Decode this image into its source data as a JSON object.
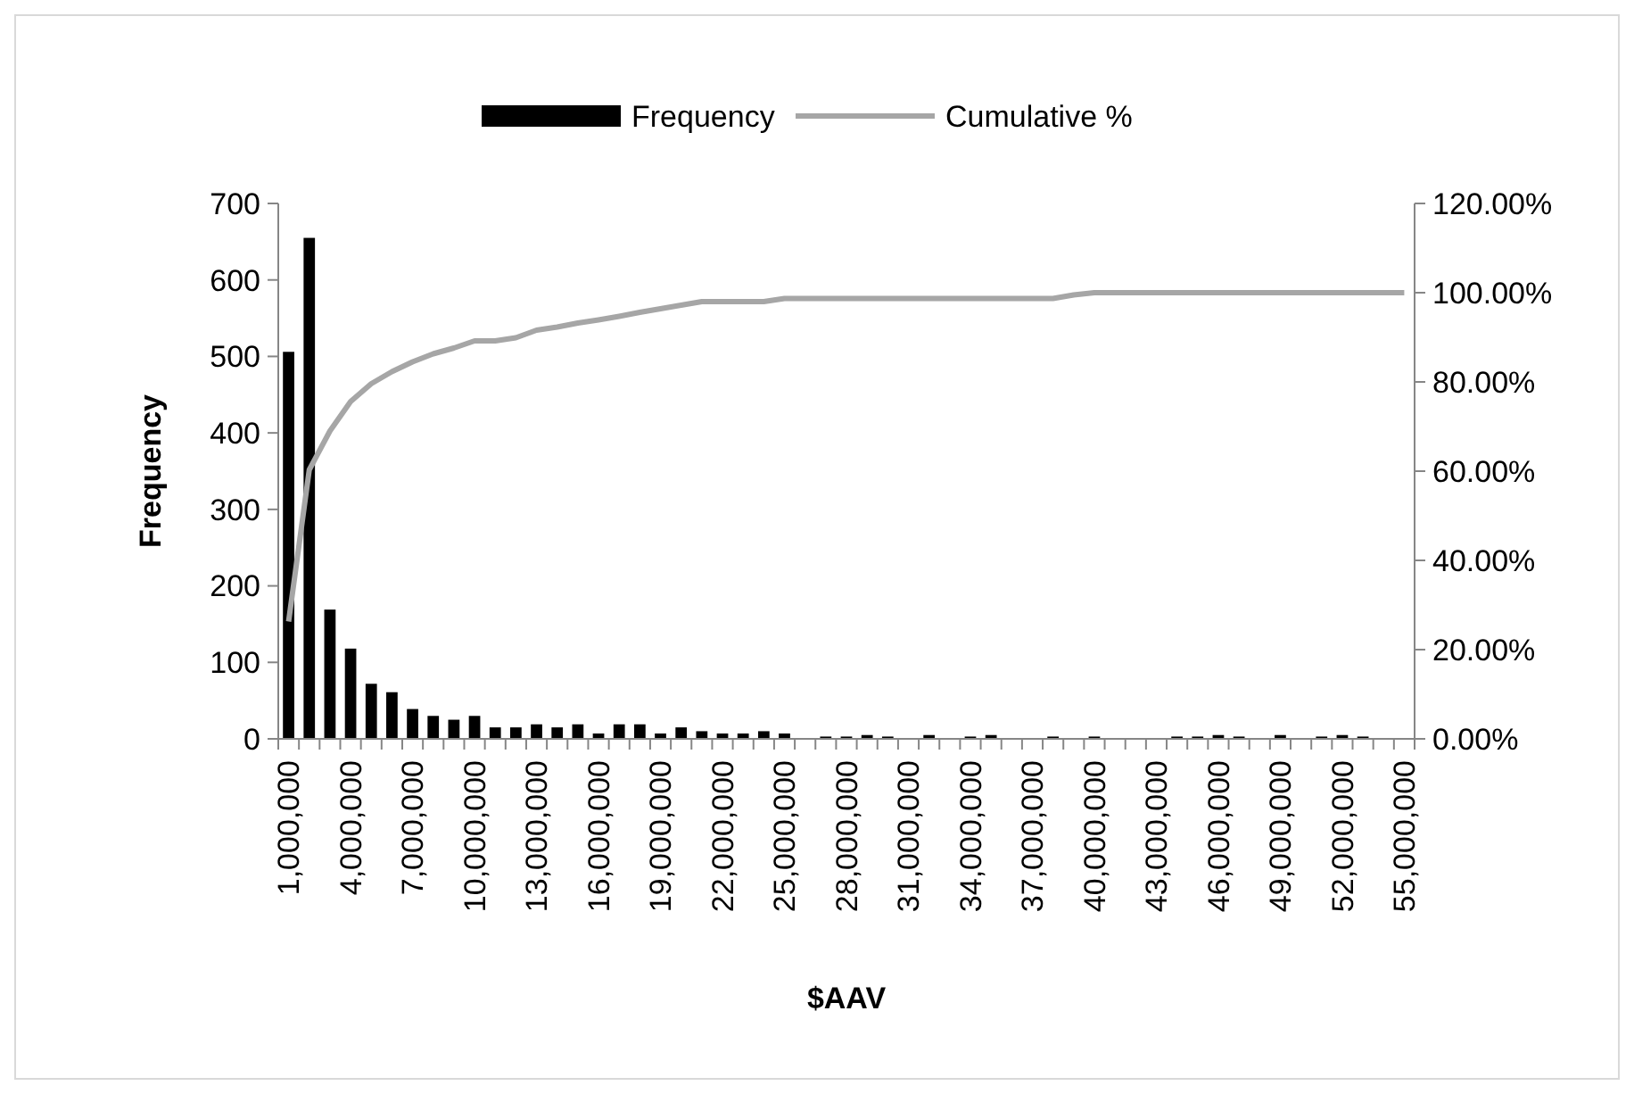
{
  "chart_data": {
    "type": "bar",
    "xlabel": "$AAV",
    "ylabel": "Frequency",
    "categories": [
      "1,000,000",
      null,
      null,
      "4,000,000",
      null,
      null,
      "7,000,000",
      null,
      null,
      "10,000,000",
      null,
      null,
      "13,000,000",
      null,
      null,
      "16,000,000",
      null,
      null,
      "19,000,000",
      null,
      null,
      "22,000,000",
      null,
      null,
      "25,000,000",
      null,
      null,
      "28,000,000",
      null,
      null,
      "31,000,000",
      null,
      null,
      "34,000,000",
      null,
      null,
      "37,000,000",
      null,
      null,
      "40,000,000",
      null,
      null,
      "43,000,000",
      null,
      null,
      "46,000,000",
      null,
      null,
      "49,000,000",
      null,
      null,
      "52,000,000",
      null,
      null,
      "55,000,000"
    ],
    "series": [
      {
        "name": "Frequency",
        "color": "#000000",
        "values": [
          506,
          655,
          169,
          118,
          72,
          61,
          39,
          30,
          25,
          30,
          15,
          15,
          19,
          15,
          19,
          7,
          19,
          19,
          7,
          15,
          10,
          7,
          7,
          10,
          7,
          0,
          3,
          3,
          5,
          3,
          0,
          5,
          0,
          3,
          5,
          0,
          0,
          3,
          0,
          3,
          0,
          0,
          0,
          3,
          3,
          5,
          3,
          0,
          5,
          0,
          3,
          5,
          3,
          0,
          0
        ]
      },
      {
        "name": "Cumulative %",
        "type": "line",
        "axis": "y2",
        "color": "#a6a6a6",
        "values": [
          26.3,
          60.3,
          69,
          75.6,
          79.6,
          82.3,
          84.5,
          86.3,
          87.6,
          89.2,
          89.2,
          89.9,
          91.6,
          92.3,
          93.2,
          93.9,
          94.7,
          95.6,
          96.4,
          97.2,
          98,
          98,
          98,
          98,
          98.7,
          98.7,
          98.7,
          98.7,
          98.7,
          98.7,
          98.7,
          98.7,
          98.7,
          98.7,
          98.7,
          98.7,
          98.7,
          98.7,
          99.5,
          100,
          100,
          100,
          100,
          100,
          100,
          100,
          100,
          100,
          100,
          100,
          100,
          100,
          100,
          100,
          100
        ]
      }
    ],
    "ylim": [
      0,
      700
    ],
    "yticks": [
      0,
      100,
      200,
      300,
      400,
      500,
      600,
      700
    ],
    "y2lim": [
      0,
      120
    ],
    "y2ticks": [
      {
        "value": 0,
        "label": "0.00%"
      },
      {
        "value": 20,
        "label": "20.00%"
      },
      {
        "value": 40,
        "label": "40.00%"
      },
      {
        "value": 60,
        "label": "60.00%"
      },
      {
        "value": 80,
        "label": "80.00%"
      },
      {
        "value": 100,
        "label": "100.00%"
      },
      {
        "value": 120,
        "label": "120.00%"
      }
    ],
    "legend": "top",
    "grid": false,
    "marker": "none",
    "line_style": "solid"
  }
}
